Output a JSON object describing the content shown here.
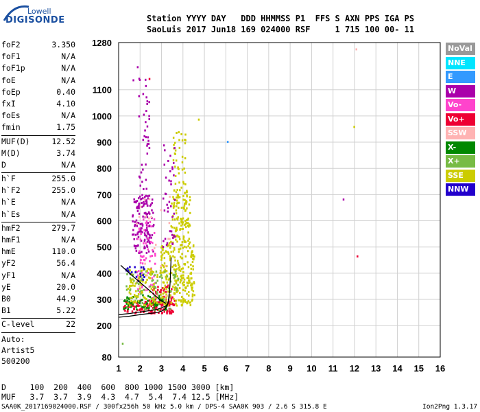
{
  "logo": {
    "line1": "Lowell",
    "line2": "DIGISONDE"
  },
  "header": {
    "line1": "Station YYYY DAY   DDD HHMMSS P1  FFS S AXN PPS IGA PS",
    "line2": "SaoLuis 2017 Jun18 169 024000 RSF     1 715 100 00- 11"
  },
  "params": [
    {
      "label": "foF2",
      "value": "3.350"
    },
    {
      "label": "foF1",
      "value": "N/A"
    },
    {
      "label": "foF1p",
      "value": "N/A"
    },
    {
      "label": "foE",
      "value": "N/A"
    },
    {
      "label": "foEp",
      "value": "0.40"
    },
    {
      "label": "fxI",
      "value": "4.10"
    },
    {
      "label": "foEs",
      "value": "N/A"
    },
    {
      "label": "fmin",
      "value": "1.75"
    },
    {
      "sep": true
    },
    {
      "label": "MUF(D)",
      "value": "12.52"
    },
    {
      "label": "M(D)",
      "value": "3.74"
    },
    {
      "label": "D",
      "value": "N/A"
    },
    {
      "sep": true
    },
    {
      "label": "h`F",
      "value": "255.0"
    },
    {
      "label": "h`F2",
      "value": "255.0"
    },
    {
      "label": "h`E",
      "value": "N/A"
    },
    {
      "label": "h`Es",
      "value": "N/A"
    },
    {
      "sep": true
    },
    {
      "label": "hmF2",
      "value": "279.7"
    },
    {
      "label": "hmF1",
      "value": "N/A"
    },
    {
      "label": "hmE",
      "value": "110.0"
    },
    {
      "label": "yF2",
      "value": "56.4"
    },
    {
      "label": "yF1",
      "value": "N/A"
    },
    {
      "label": "yE",
      "value": "20.0"
    },
    {
      "label": "B0",
      "value": "44.9"
    },
    {
      "label": "B1",
      "value": "5.22"
    },
    {
      "sep": true
    },
    {
      "label": "C-level",
      "value": "22"
    },
    {
      "sep": true
    }
  ],
  "auto": {
    "line1": "Auto:",
    "line2": "Artist5",
    "line3": "500200"
  },
  "legend": [
    {
      "label": "NoVal",
      "color": "#999999"
    },
    {
      "label": "NNE",
      "color": "#00e5ff"
    },
    {
      "label": "E",
      "color": "#3399ff"
    },
    {
      "label": "W",
      "color": "#aa00aa"
    },
    {
      "label": "Vo-",
      "color": "#ff44cc"
    },
    {
      "label": "Vo+",
      "color": "#ee0033"
    },
    {
      "label": "SSW",
      "color": "#ffb3b3"
    },
    {
      "label": "X-",
      "color": "#008800"
    },
    {
      "label": "X+",
      "color": "#77bb44"
    },
    {
      "label": "SSE",
      "color": "#cccc00"
    },
    {
      "label": "NNW",
      "color": "#2200cc"
    }
  ],
  "bottom": {
    "row_d": "D     100  200  400  600  800 1000 1500 3000 [km]",
    "row_muf": "MUF   3.7  3.7  3.9  4.3  4.7  5.4  7.4 12.5 [MHz]"
  },
  "footer": {
    "left": "SAA0K_2017169024000.RSF / 300fx256h 50 kHz 5.0 km / DPS-4 SAA0K 903 / 2.6 S 315.8 E",
    "right": "Ion2Png 1.3.17"
  },
  "chart_data": {
    "type": "scatter",
    "title": "",
    "xlabel": "",
    "ylabel": "",
    "xlim": [
      1,
      16
    ],
    "ylim": [
      80,
      1280
    ],
    "x_ticks": [
      1,
      2,
      3,
      4,
      5,
      6,
      7,
      8,
      9,
      10,
      11,
      12,
      13,
      14,
      15,
      16
    ],
    "y_ticks": [
      80,
      200,
      300,
      400,
      500,
      600,
      700,
      800,
      900,
      1000,
      1100,
      1280
    ],
    "grid": true,
    "profile_curve": {
      "name": "profile",
      "x": [
        1.0,
        1.5,
        2.0,
        2.5,
        2.8,
        3.0,
        3.15,
        3.25,
        3.32,
        3.35
      ],
      "y": [
        232,
        236,
        242,
        247,
        250,
        255,
        262,
        272,
        290,
        320
      ]
    },
    "trace_curve": {
      "name": "trace",
      "x": [
        1.0,
        1.5,
        2.0,
        2.5,
        2.8,
        3.0,
        3.2,
        3.3,
        3.35,
        3.4,
        3.45
      ],
      "y": [
        242,
        246,
        252,
        258,
        262,
        268,
        275,
        285,
        310,
        360,
        460
      ]
    },
    "valley_curve": {
      "name": "valley",
      "x": [
        1.1,
        1.5,
        2.0,
        2.5,
        2.9,
        3.2
      ],
      "y": [
        430,
        400,
        365,
        330,
        300,
        285
      ]
    },
    "clusters": [
      {
        "color": "#aa00aa",
        "x": [
          1.6,
          2.6
        ],
        "y": [
          480,
          700
        ],
        "n": 140
      },
      {
        "color": "#aa00aa",
        "x": [
          1.9,
          2.4
        ],
        "y": [
          700,
          1150
        ],
        "n": 40
      },
      {
        "color": "#ff44cc",
        "x": [
          1.8,
          2.7
        ],
        "y": [
          330,
          620
        ],
        "n": 60
      },
      {
        "color": "#ee0033",
        "x": [
          1.2,
          3.6
        ],
        "y": [
          250,
          300
        ],
        "n": 140
      },
      {
        "color": "#ee0033",
        "x": [
          2.5,
          3.5
        ],
        "y": [
          280,
          360
        ],
        "n": 50
      },
      {
        "color": "#cccc00",
        "x": [
          2.9,
          4.5
        ],
        "y": [
          280,
          520
        ],
        "n": 260
      },
      {
        "color": "#cccc00",
        "x": [
          3.4,
          4.3
        ],
        "y": [
          520,
          720
        ],
        "n": 120
      },
      {
        "color": "#cccc00",
        "x": [
          3.5,
          4.1
        ],
        "y": [
          720,
          950
        ],
        "n": 40
      },
      {
        "color": "#77bb44",
        "x": [
          1.3,
          3.8
        ],
        "y": [
          260,
          420
        ],
        "n": 90
      },
      {
        "color": "#008800",
        "x": [
          1.2,
          3.2
        ],
        "y": [
          260,
          320
        ],
        "n": 60
      },
      {
        "color": "#cccc00",
        "x": [
          1.4,
          2.8
        ],
        "y": [
          280,
          420
        ],
        "n": 90
      },
      {
        "color": "#2200cc",
        "x": [
          1.3,
          2.2
        ],
        "y": [
          370,
          430
        ],
        "n": 20
      },
      {
        "color": "#aa00aa",
        "x": [
          3.0,
          3.6
        ],
        "y": [
          500,
          900
        ],
        "n": 40
      },
      {
        "color": "#ffb3b3",
        "x": [
          1.8,
          3.4
        ],
        "y": [
          300,
          700
        ],
        "n": 25
      }
    ],
    "isolated_points": [
      {
        "x": 6.05,
        "y": 905,
        "color": "#3399ff"
      },
      {
        "x": 11.45,
        "y": 685,
        "color": "#aa00aa"
      },
      {
        "x": 12.1,
        "y": 468,
        "color": "#ee0033"
      },
      {
        "x": 11.95,
        "y": 962,
        "color": "#cccc00"
      },
      {
        "x": 12.05,
        "y": 1258,
        "color": "#ffb3b3"
      },
      {
        "x": 1.85,
        "y": 1190,
        "color": "#aa00aa"
      },
      {
        "x": 1.65,
        "y": 1140,
        "color": "#aa00aa"
      },
      {
        "x": 2.4,
        "y": 1145,
        "color": "#ee0033"
      },
      {
        "x": 1.15,
        "y": 135,
        "color": "#77bb44"
      },
      {
        "x": 4.7,
        "y": 990,
        "color": "#cccc00"
      }
    ]
  }
}
